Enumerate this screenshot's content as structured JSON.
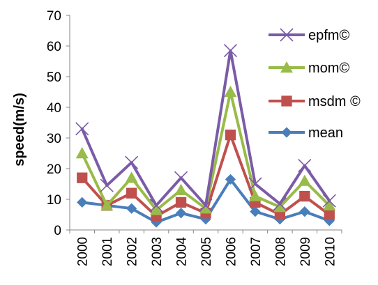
{
  "chart_data": {
    "type": "line",
    "title": "",
    "xlabel": "",
    "ylabel": "speed(m/s)",
    "ylim": [
      0,
      70
    ],
    "yticks": [
      0,
      10,
      20,
      30,
      40,
      50,
      60,
      70
    ],
    "grid": false,
    "legend_position": "right",
    "categories": [
      "2000",
      "2001",
      "2002",
      "2003",
      "2004",
      "2005",
      "2006",
      "2007",
      "2008",
      "2009",
      "2010"
    ],
    "series": [
      {
        "name": "epfm©",
        "color": "#7B5BA7",
        "marker": "x",
        "values": [
          33,
          14.5,
          22,
          8,
          17,
          8,
          58.5,
          15,
          8.5,
          21,
          9.5
        ]
      },
      {
        "name": "mom©",
        "color": "#98BB49",
        "marker": "triangle",
        "values": [
          25,
          8,
          17,
          6.5,
          13,
          7,
          45,
          11,
          7.5,
          16,
          8
        ]
      },
      {
        "name": "msdm ©",
        "color": "#C0504D",
        "marker": "square",
        "values": [
          17,
          8,
          12,
          4.5,
          9,
          5.5,
          31,
          9,
          5,
          11,
          5
        ]
      },
      {
        "name": "mean",
        "color": "#4A7EBB",
        "marker": "diamond",
        "values": [
          9,
          8,
          7,
          2.5,
          5.5,
          3.5,
          16.5,
          6,
          3.5,
          6,
          3
        ]
      }
    ]
  }
}
